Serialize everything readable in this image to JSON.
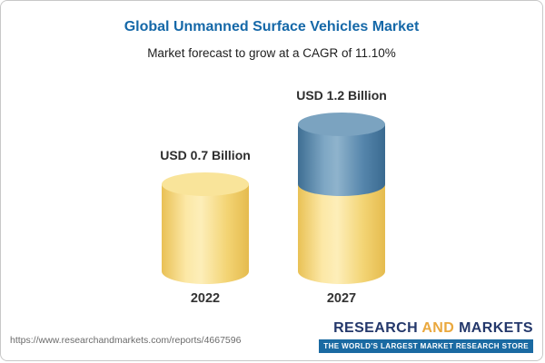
{
  "header": {
    "title": "Global Unmanned Surface Vehicles Market",
    "subtitle": "Market forecast to grow at a CAGR of 11.10%"
  },
  "chart_data": {
    "type": "bar",
    "variant": "stacked-cylinder",
    "categories": [
      "2022",
      "2027"
    ],
    "values": [
      0.7,
      1.2
    ],
    "value_labels": [
      "USD 0.7 Billion",
      "USD 1.2 Billion"
    ],
    "unit": "USD Billion",
    "cagr": "11.10%",
    "series": [
      {
        "name": "base",
        "values": [
          0.7,
          0.7
        ],
        "color": "#f6d97e"
      },
      {
        "name": "growth",
        "values": [
          0,
          0.5
        ],
        "color": "#5d8cb0"
      }
    ],
    "ylim": [
      0,
      1.4
    ],
    "grid": false,
    "legend": false,
    "title": "Global Unmanned Surface Vehicles Market",
    "xlabel": "",
    "ylabel": ""
  },
  "footer": {
    "source_url": "https://www.researchandmarkets.com/reports/4667596",
    "brand": {
      "word1": "RESEARCH",
      "word2": "AND",
      "word3": "MARKETS",
      "tagline": "THE WORLD'S LARGEST MARKET RESEARCH STORE"
    }
  }
}
